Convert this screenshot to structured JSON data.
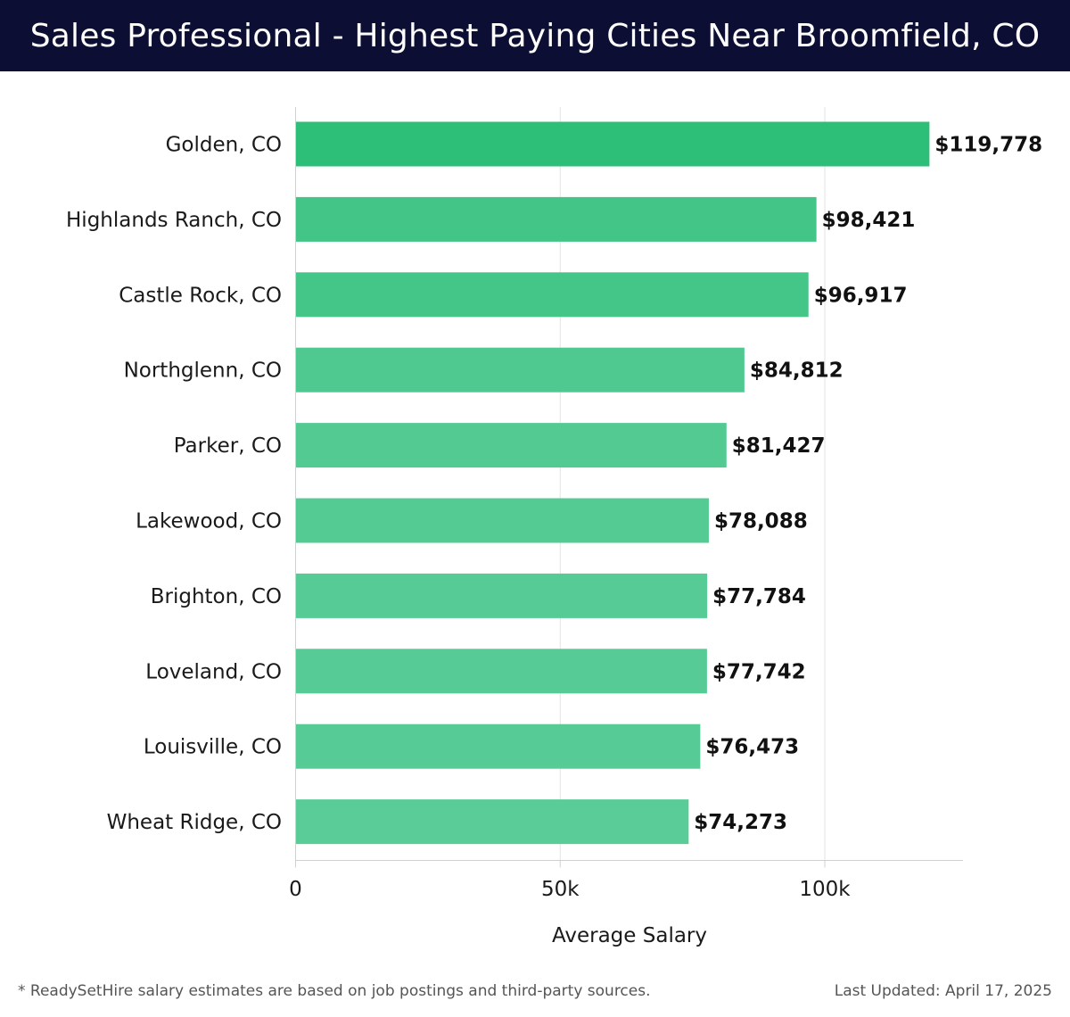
{
  "header": {
    "title": "Sales Professional - Highest Paying Cities Near Broomfield, CO"
  },
  "chart_data": {
    "type": "bar",
    "orientation": "horizontal",
    "categories": [
      "Golden, CO",
      "Highlands Ranch, CO",
      "Castle Rock, CO",
      "Northglenn, CO",
      "Parker, CO",
      "Lakewood, CO",
      "Brighton, CO",
      "Loveland, CO",
      "Louisville, CO",
      "Wheat Ridge, CO"
    ],
    "values": [
      119778,
      98421,
      96917,
      84812,
      81427,
      78088,
      77784,
      77742,
      76473,
      74273
    ],
    "data_labels": [
      "$119,778",
      "$98,421",
      "$96,917",
      "$84,812",
      "$81,427",
      "$78,088",
      "$77,784",
      "$77,742",
      "$76,473",
      "$74,273"
    ],
    "xlabel": "Average Salary",
    "ylabel": "",
    "xlim": [
      0,
      126000
    ],
    "xticks": [
      0,
      50000,
      100000
    ],
    "xtick_labels": [
      "0",
      "50k",
      "100k"
    ],
    "grid": "vertical",
    "colors": {
      "bar_max": "#2dbf78",
      "bar_min": "#59cc97"
    }
  },
  "footer": {
    "note": "* ReadySetHire salary estimates are based on job postings and third-party sources.",
    "updated": "Last Updated: April 17, 2025"
  }
}
